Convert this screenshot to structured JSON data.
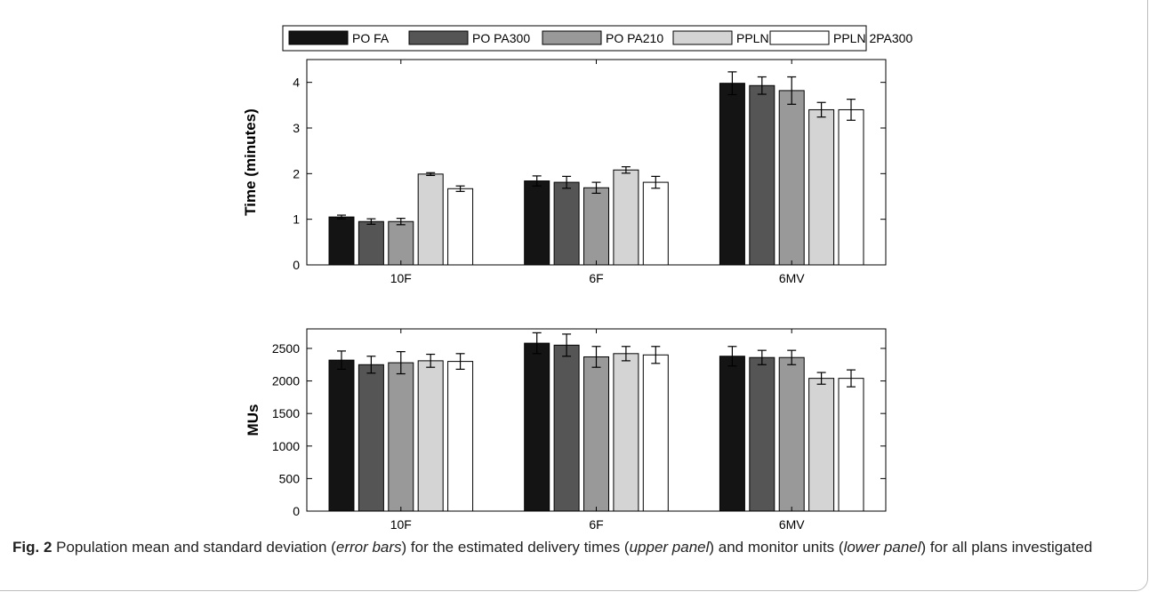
{
  "legend": {
    "entries": [
      {
        "label": "PO FA",
        "color": "#141414"
      },
      {
        "label": "PO PA300",
        "color": "#555555"
      },
      {
        "label": "PO PA210",
        "color": "#999999"
      },
      {
        "label": "PPLN 2FA",
        "color": "#d4d4d4"
      },
      {
        "label": "PPLN 2PA300",
        "color": "#ffffff"
      }
    ]
  },
  "chart_data": [
    {
      "type": "bar",
      "ylabel": "Time (minutes)",
      "xlabel": "",
      "categories": [
        "10F",
        "6F",
        "6MV"
      ],
      "ylim": [
        0,
        4.5
      ],
      "yticks": [
        "0",
        "1",
        "2",
        "3",
        "4"
      ],
      "series": [
        {
          "name": "PO FA",
          "values": [
            1.05,
            1.84,
            3.98
          ],
          "errors": [
            0.04,
            0.11,
            0.25
          ]
        },
        {
          "name": "PO PA300",
          "values": [
            0.95,
            1.81,
            3.93
          ],
          "errors": [
            0.06,
            0.13,
            0.19
          ]
        },
        {
          "name": "PO PA210",
          "values": [
            0.95,
            1.69,
            3.82
          ],
          "errors": [
            0.07,
            0.12,
            0.3
          ]
        },
        {
          "name": "PPLN 2FA",
          "values": [
            1.99,
            2.08,
            3.4
          ],
          "errors": [
            0.03,
            0.07,
            0.16
          ]
        },
        {
          "name": "PPLN 2PA300",
          "values": [
            1.67,
            1.81,
            3.4
          ],
          "errors": [
            0.06,
            0.13,
            0.23
          ]
        }
      ]
    },
    {
      "type": "bar",
      "ylabel": "MUs",
      "xlabel": "",
      "categories": [
        "10F",
        "6F",
        "6MV"
      ],
      "ylim": [
        0,
        2800
      ],
      "yticks": [
        "0",
        "500",
        "1000",
        "1500",
        "2000",
        "2500"
      ],
      "series": [
        {
          "name": "PO FA",
          "values": [
            2320,
            2580,
            2380
          ],
          "errors": [
            140,
            160,
            150
          ]
        },
        {
          "name": "PO PA300",
          "values": [
            2250,
            2550,
            2360
          ],
          "errors": [
            130,
            170,
            110
          ]
        },
        {
          "name": "PO PA210",
          "values": [
            2280,
            2370,
            2360
          ],
          "errors": [
            170,
            160,
            110
          ]
        },
        {
          "name": "PPLN 2FA",
          "values": [
            2310,
            2420,
            2040
          ],
          "errors": [
            100,
            110,
            90
          ]
        },
        {
          "name": "PPLN 2PA300",
          "values": [
            2300,
            2400,
            2040
          ],
          "errors": [
            120,
            130,
            130
          ]
        }
      ]
    }
  ],
  "caption": {
    "label": "Fig. 2",
    "t1": " Population mean and standard deviation (",
    "e1": "error bars",
    "t2": ") for the estimated delivery times (",
    "e2": "upper panel",
    "t3": ") and monitor units (",
    "e3": "lower panel",
    "t4": ") for all plans investigated"
  }
}
